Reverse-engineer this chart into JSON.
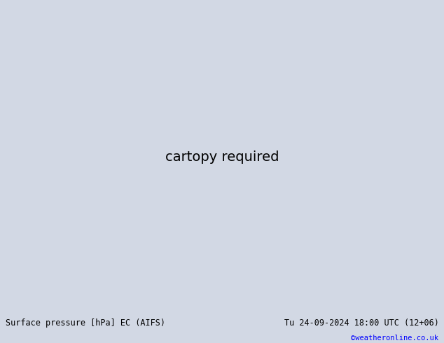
{
  "title_left": "Surface pressure [hPa] EC (AIFS)",
  "title_right": "Tu 24-09-2024 18:00 UTC (12+06)",
  "title_right2": "©weatheronline.co.uk",
  "bg_color": "#d2d8e4",
  "land_color": "#a8d878",
  "border_color": "#808080",
  "ocean_color": "#d2d8e4",
  "fig_width": 6.34,
  "fig_height": 4.9,
  "dpi": 100,
  "bottom_bar_color": "#c0c0c0",
  "lon_min": -93,
  "lon_max": -25,
  "lat_min": -62,
  "lat_max": 16
}
